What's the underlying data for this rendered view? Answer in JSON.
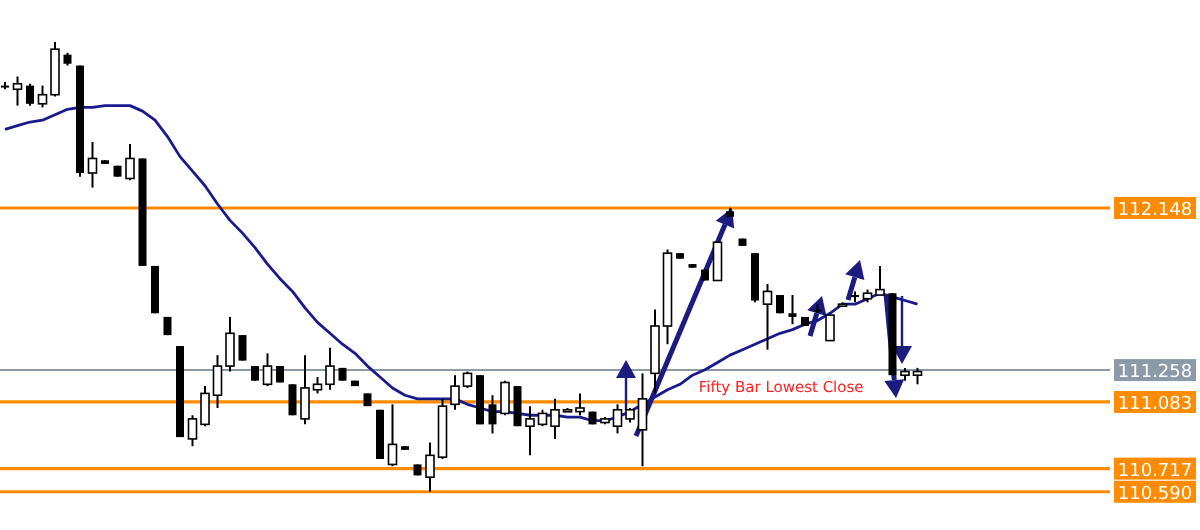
{
  "chart_data": {
    "type": "candlestick",
    "ylim": [
      110.38,
      113.29
    ],
    "categories": [
      null,
      null,
      null,
      null,
      null,
      null,
      null,
      null,
      null,
      null,
      null,
      null,
      null,
      null,
      null,
      null,
      null,
      null,
      null,
      null,
      null,
      null,
      null,
      null,
      null,
      null,
      null,
      null,
      null,
      null,
      null,
      null,
      null,
      null,
      null,
      null,
      null,
      null,
      null,
      null,
      null,
      null,
      null,
      null,
      null,
      null,
      null,
      null,
      null,
      null,
      null,
      null,
      null,
      null,
      null,
      null,
      null,
      null,
      null,
      null,
      null,
      null,
      null,
      null,
      null,
      null,
      null,
      null,
      null,
      null,
      null,
      null,
      null,
      null
    ],
    "series": [
      {
        "color": "#000000",
        "ohlc": [
          [
            112.82,
            112.84,
            112.8,
            112.81
          ],
          [
            112.8,
            112.87,
            112.71,
            112.83
          ],
          [
            112.82,
            112.83,
            112.71,
            112.72
          ],
          [
            112.72,
            112.82,
            112.7,
            112.77
          ],
          [
            112.77,
            113.06,
            112.76,
            113.02
          ],
          [
            112.99,
            113.0,
            112.93,
            112.94
          ],
          [
            112.93,
            112.93,
            112.32,
            112.34
          ],
          [
            112.34,
            112.51,
            112.26,
            112.42
          ],
          [
            112.41,
            112.41,
            112.39,
            112.39
          ],
          [
            112.38,
            112.38,
            112.32,
            112.32
          ],
          [
            112.31,
            112.5,
            112.3,
            112.42
          ],
          [
            112.42,
            112.42,
            111.83,
            111.83
          ],
          [
            111.83,
            111.83,
            111.57,
            111.57
          ],
          [
            111.55,
            111.55,
            111.45,
            111.45
          ],
          [
            111.39,
            111.39,
            110.89,
            110.89
          ],
          [
            110.88,
            111.01,
            110.84,
            110.99
          ],
          [
            110.96,
            111.17,
            110.95,
            111.13
          ],
          [
            111.12,
            111.34,
            111.05,
            111.28
          ],
          [
            111.28,
            111.55,
            111.25,
            111.46
          ],
          [
            111.45,
            111.45,
            111.31,
            111.31
          ],
          [
            111.28,
            111.28,
            111.2,
            111.2
          ],
          [
            111.18,
            111.35,
            111.17,
            111.28
          ],
          [
            111.28,
            111.28,
            111.19,
            111.19
          ],
          [
            111.18,
            111.18,
            111.01,
            111.01
          ],
          [
            110.99,
            111.34,
            110.96,
            111.16
          ],
          [
            111.15,
            111.22,
            111.13,
            111.18
          ],
          [
            111.18,
            111.38,
            111.15,
            111.28
          ],
          [
            111.27,
            111.27,
            111.2,
            111.2
          ],
          [
            111.2,
            111.2,
            111.17,
            111.17
          ],
          [
            111.13,
            111.13,
            111.06,
            111.06
          ],
          [
            111.04,
            111.04,
            110.77,
            110.77
          ],
          [
            110.74,
            111.07,
            110.73,
            110.85
          ],
          [
            110.84,
            110.84,
            110.82,
            110.82
          ],
          [
            110.74,
            110.74,
            110.68,
            110.68
          ],
          [
            110.67,
            110.86,
            110.59,
            110.79
          ],
          [
            110.78,
            111.1,
            110.77,
            111.06
          ],
          [
            111.07,
            111.23,
            111.04,
            111.17
          ],
          [
            111.17,
            111.25,
            111.16,
            111.24
          ],
          [
            111.23,
            111.23,
            110.96,
            110.96
          ],
          [
            111.07,
            111.12,
            110.91,
            110.96
          ],
          [
            111.02,
            111.2,
            111.01,
            111.19
          ],
          [
            111.17,
            111.17,
            110.95,
            110.95
          ],
          [
            110.95,
            111.06,
            110.79,
            110.99
          ],
          [
            110.96,
            111.04,
            110.95,
            111.02
          ],
          [
            110.95,
            111.1,
            110.88,
            111.04
          ],
          [
            111.04,
            111.05,
            111.03,
            111.04
          ],
          [
            111.03,
            111.13,
            111.01,
            111.05
          ],
          [
            111.03,
            111.03,
            110.96,
            110.96
          ],
          [
            110.97,
            111.0,
            110.96,
            110.99
          ],
          [
            110.95,
            111.07,
            110.91,
            111.04
          ],
          [
            110.99,
            111.05,
            110.97,
            111.04
          ],
          [
            110.93,
            111.24,
            110.73,
            111.1
          ],
          [
            111.24,
            111.59,
            111.13,
            111.5
          ],
          [
            111.5,
            111.92,
            111.4,
            111.9
          ],
          [
            111.9,
            111.9,
            111.87,
            111.87
          ],
          [
            111.84,
            111.84,
            111.82,
            111.82
          ],
          [
            111.81,
            111.81,
            111.75,
            111.75
          ],
          [
            111.75,
            111.96,
            111.75,
            111.96
          ],
          [
            112.13,
            112.15,
            112.1,
            112.1
          ],
          [
            111.98,
            111.98,
            111.94,
            111.94
          ],
          [
            111.9,
            111.9,
            111.63,
            111.64
          ],
          [
            111.62,
            111.73,
            111.37,
            111.69
          ],
          [
            111.67,
            111.67,
            111.57,
            111.57
          ],
          [
            111.57,
            111.67,
            111.51,
            111.55
          ],
          [
            111.55,
            111.55,
            111.5,
            111.5
          ],
          [
            111.59,
            111.62,
            111.57,
            111.58
          ],
          [
            111.42,
            111.56,
            111.42,
            111.56
          ],
          [
            111.62,
            111.63,
            111.61,
            111.62
          ],
          [
            111.67,
            111.69,
            111.63,
            111.66
          ],
          [
            111.65,
            111.7,
            111.63,
            111.68
          ],
          [
            111.67,
            111.83,
            111.67,
            111.7
          ],
          [
            111.68,
            111.68,
            111.23,
            111.23
          ],
          [
            111.23,
            111.27,
            111.2,
            111.25
          ],
          [
            111.23,
            111.27,
            111.18,
            111.25
          ]
        ]
      },
      {
        "type": "line",
        "color": "#1a1a8c",
        "values": [
          112.58,
          112.6,
          112.62,
          112.63,
          112.66,
          112.69,
          112.7,
          112.7,
          112.71,
          112.71,
          112.71,
          112.68,
          112.63,
          112.54,
          112.43,
          112.35,
          112.27,
          112.17,
          112.08,
          112.01,
          111.93,
          111.84,
          111.76,
          111.69,
          111.6,
          111.52,
          111.46,
          111.4,
          111.35,
          111.28,
          111.22,
          111.16,
          111.12,
          111.1,
          111.1,
          111.1,
          111.1,
          111.07,
          111.05,
          111.03,
          111.03,
          111.02,
          111.01,
          111.01,
          111.01,
          111.0,
          111.0,
          110.98,
          110.98,
          111.0,
          111.03,
          111.07,
          111.11,
          111.15,
          111.18,
          111.23,
          111.26,
          111.3,
          111.34,
          111.37,
          111.4,
          111.43,
          111.46,
          111.48,
          111.51,
          111.53,
          111.57,
          111.62,
          111.62,
          111.65,
          111.68,
          111.66,
          111.64,
          111.62
        ]
      }
    ],
    "ref_lines": [
      {
        "axis": "y",
        "value": 112.148,
        "label": "112.148",
        "color": "#ff8c00"
      },
      {
        "axis": "y",
        "value": 111.258,
        "label": "111.258",
        "color": "#8c9aa8"
      },
      {
        "axis": "y",
        "value": 111.083,
        "label": "111.083",
        "color": "#ff8c00"
      },
      {
        "axis": "y",
        "value": 110.717,
        "label": "110.717",
        "color": "#ff8c00"
      },
      {
        "axis": "y",
        "value": 110.59,
        "label": "110.590",
        "color": "#ff8c00"
      }
    ],
    "annotations": [
      "Fifty Bar Lowest Close"
    ]
  }
}
